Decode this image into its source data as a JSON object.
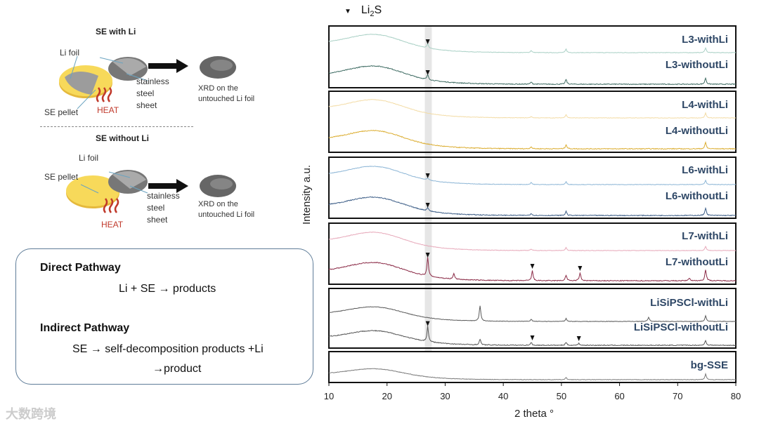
{
  "diagram": {
    "with_li": {
      "title": "SE with Li",
      "li_foil": "Li foil",
      "se_pellet": "SE pellet",
      "heat": "HEAT",
      "steel": [
        "stainless",
        "steel",
        "sheet"
      ],
      "xrd": [
        "XRD on the",
        "untouched Li foil"
      ]
    },
    "without_li": {
      "title": "SE without Li",
      "li_foil": "Li foil",
      "se_pellet": "SE pellet",
      "heat": "HEAT",
      "steel": [
        "stainless",
        "steel",
        "sheet"
      ],
      "xrd": [
        "XRD on the",
        "untouched Li foil"
      ]
    }
  },
  "pathways": {
    "direct_title": "Direct Pathway",
    "direct_eq": "Li + SE → products",
    "indirect_title": "Indirect Pathway",
    "indirect_eq_1": "SE → self-decomposition products +Li",
    "indirect_eq_2": "→product"
  },
  "watermark": "大数跨境",
  "chart_data": {
    "type": "line",
    "xlabel": "2 theta °",
    "ylabel": "Intensity a.u.",
    "xlim": [
      10,
      80
    ],
    "xticks": [
      10,
      20,
      30,
      40,
      50,
      60,
      70,
      80
    ],
    "legend": {
      "marker": "▼",
      "label_main": "Li",
      "label_sub": "2",
      "label_end": "S",
      "placement": "top-left"
    },
    "highlight_band": [
      26.5,
      27.7
    ],
    "series": [
      {
        "name": "L3-withLi",
        "color": "#a9d0c5",
        "panel": 0,
        "peaks": [
          [
            27,
            6
          ],
          [
            44.8,
            3
          ],
          [
            50.8,
            5
          ],
          [
            74.8,
            7
          ]
        ],
        "markers": [
          27
        ]
      },
      {
        "name": "L3-withoutLi",
        "color": "#3f6c63",
        "panel": 0,
        "peaks": [
          [
            27,
            7
          ],
          [
            44.8,
            3
          ],
          [
            50.8,
            7
          ],
          [
            74.8,
            9
          ]
        ],
        "markers": [
          27
        ]
      },
      {
        "name": "L4-withLi",
        "color": "#f3dca6",
        "panel": 1,
        "peaks": [
          [
            44.8,
            2
          ],
          [
            50.8,
            5
          ],
          [
            74.8,
            7
          ]
        ],
        "markers": []
      },
      {
        "name": "L4-withoutLi",
        "color": "#dcae33",
        "panel": 1,
        "peaks": [
          [
            44.8,
            3
          ],
          [
            50.8,
            6
          ],
          [
            74.8,
            9
          ]
        ],
        "markers": []
      },
      {
        "name": "L6-withLi",
        "color": "#8db6d6",
        "panel": 2,
        "peaks": [
          [
            27,
            3
          ],
          [
            44.8,
            3
          ],
          [
            50.8,
            4
          ],
          [
            74.8,
            6
          ]
        ],
        "markers": [
          27
        ]
      },
      {
        "name": "L6-withoutLi",
        "color": "#3e5f88",
        "panel": 2,
        "peaks": [
          [
            27,
            5
          ],
          [
            44.8,
            3
          ],
          [
            50.8,
            6
          ],
          [
            74.8,
            11
          ]
        ],
        "markers": [
          27
        ]
      },
      {
        "name": "L7-withLi",
        "color": "#e7a9ba",
        "panel": 3,
        "peaks": [
          [
            44.8,
            2
          ],
          [
            50.8,
            4
          ],
          [
            74.8,
            6
          ]
        ],
        "markers": []
      },
      {
        "name": "L7-withoutLi",
        "color": "#8b2b47",
        "panel": 3,
        "peaks": [
          [
            27,
            27
          ],
          [
            31.5,
            8
          ],
          [
            45,
            14
          ],
          [
            50.8,
            8
          ],
          [
            53.2,
            11
          ],
          [
            72,
            4
          ],
          [
            74.8,
            16
          ]
        ],
        "markers": [
          27,
          45,
          53.2
        ]
      },
      {
        "name": "LiSiPSCl-withLi",
        "color": "#5a5a5a",
        "panel": 4,
        "peaks": [
          [
            36,
            22
          ],
          [
            44.8,
            3
          ],
          [
            50.8,
            4
          ],
          [
            65,
            6
          ],
          [
            74.8,
            8
          ]
        ],
        "markers": []
      },
      {
        "name": "LiSiPSCl-withoutLi",
        "color": "#555555",
        "panel": 4,
        "peaks": [
          [
            27,
            22
          ],
          [
            36,
            8
          ],
          [
            44.8,
            4
          ],
          [
            50.8,
            4
          ],
          [
            53,
            3
          ],
          [
            74.8,
            7
          ]
        ],
        "markers": [
          27,
          45,
          53
        ]
      },
      {
        "name": "bg-SSE",
        "color": "#7a7a7a",
        "panel": 5,
        "peaks": [
          [
            50.8,
            3
          ],
          [
            74.8,
            8
          ]
        ],
        "markers": []
      }
    ]
  }
}
